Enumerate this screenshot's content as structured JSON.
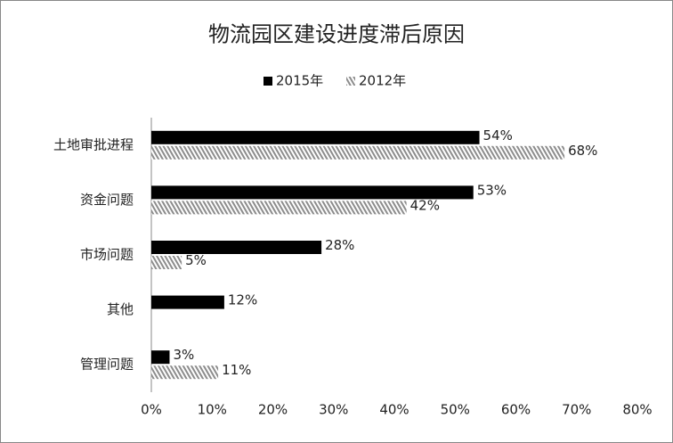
{
  "chart_data": {
    "type": "bar",
    "orientation": "horizontal",
    "title": "物流园区建设进度滞后原因",
    "categories": [
      "土地审批进程",
      "资金问题",
      "市场问题",
      "其他",
      "管理问题"
    ],
    "series": [
      {
        "name": "2015年",
        "color": "#000000",
        "values": [
          54,
          53,
          28,
          12,
          3
        ],
        "value_labels": [
          "54%",
          "53%",
          "28%",
          "12%",
          "3%"
        ]
      },
      {
        "name": "2012年",
        "color": "#8c8c8c",
        "hatch": true,
        "values": [
          68,
          42,
          5,
          null,
          11
        ],
        "value_labels": [
          "68%",
          "42%",
          "5%",
          null,
          "11%"
        ]
      }
    ],
    "xlim": [
      0,
      80
    ],
    "xticks": [
      {
        "value": 0,
        "label": "0%"
      },
      {
        "value": 10,
        "label": "10%"
      },
      {
        "value": 20,
        "label": "20%"
      },
      {
        "value": 30,
        "label": "30%"
      },
      {
        "value": 40,
        "label": "40%"
      },
      {
        "value": 50,
        "label": "50%"
      },
      {
        "value": 60,
        "label": "60%"
      },
      {
        "value": 70,
        "label": "70%"
      },
      {
        "value": 80,
        "label": "80%"
      }
    ],
    "grid": false,
    "legend": "top"
  }
}
